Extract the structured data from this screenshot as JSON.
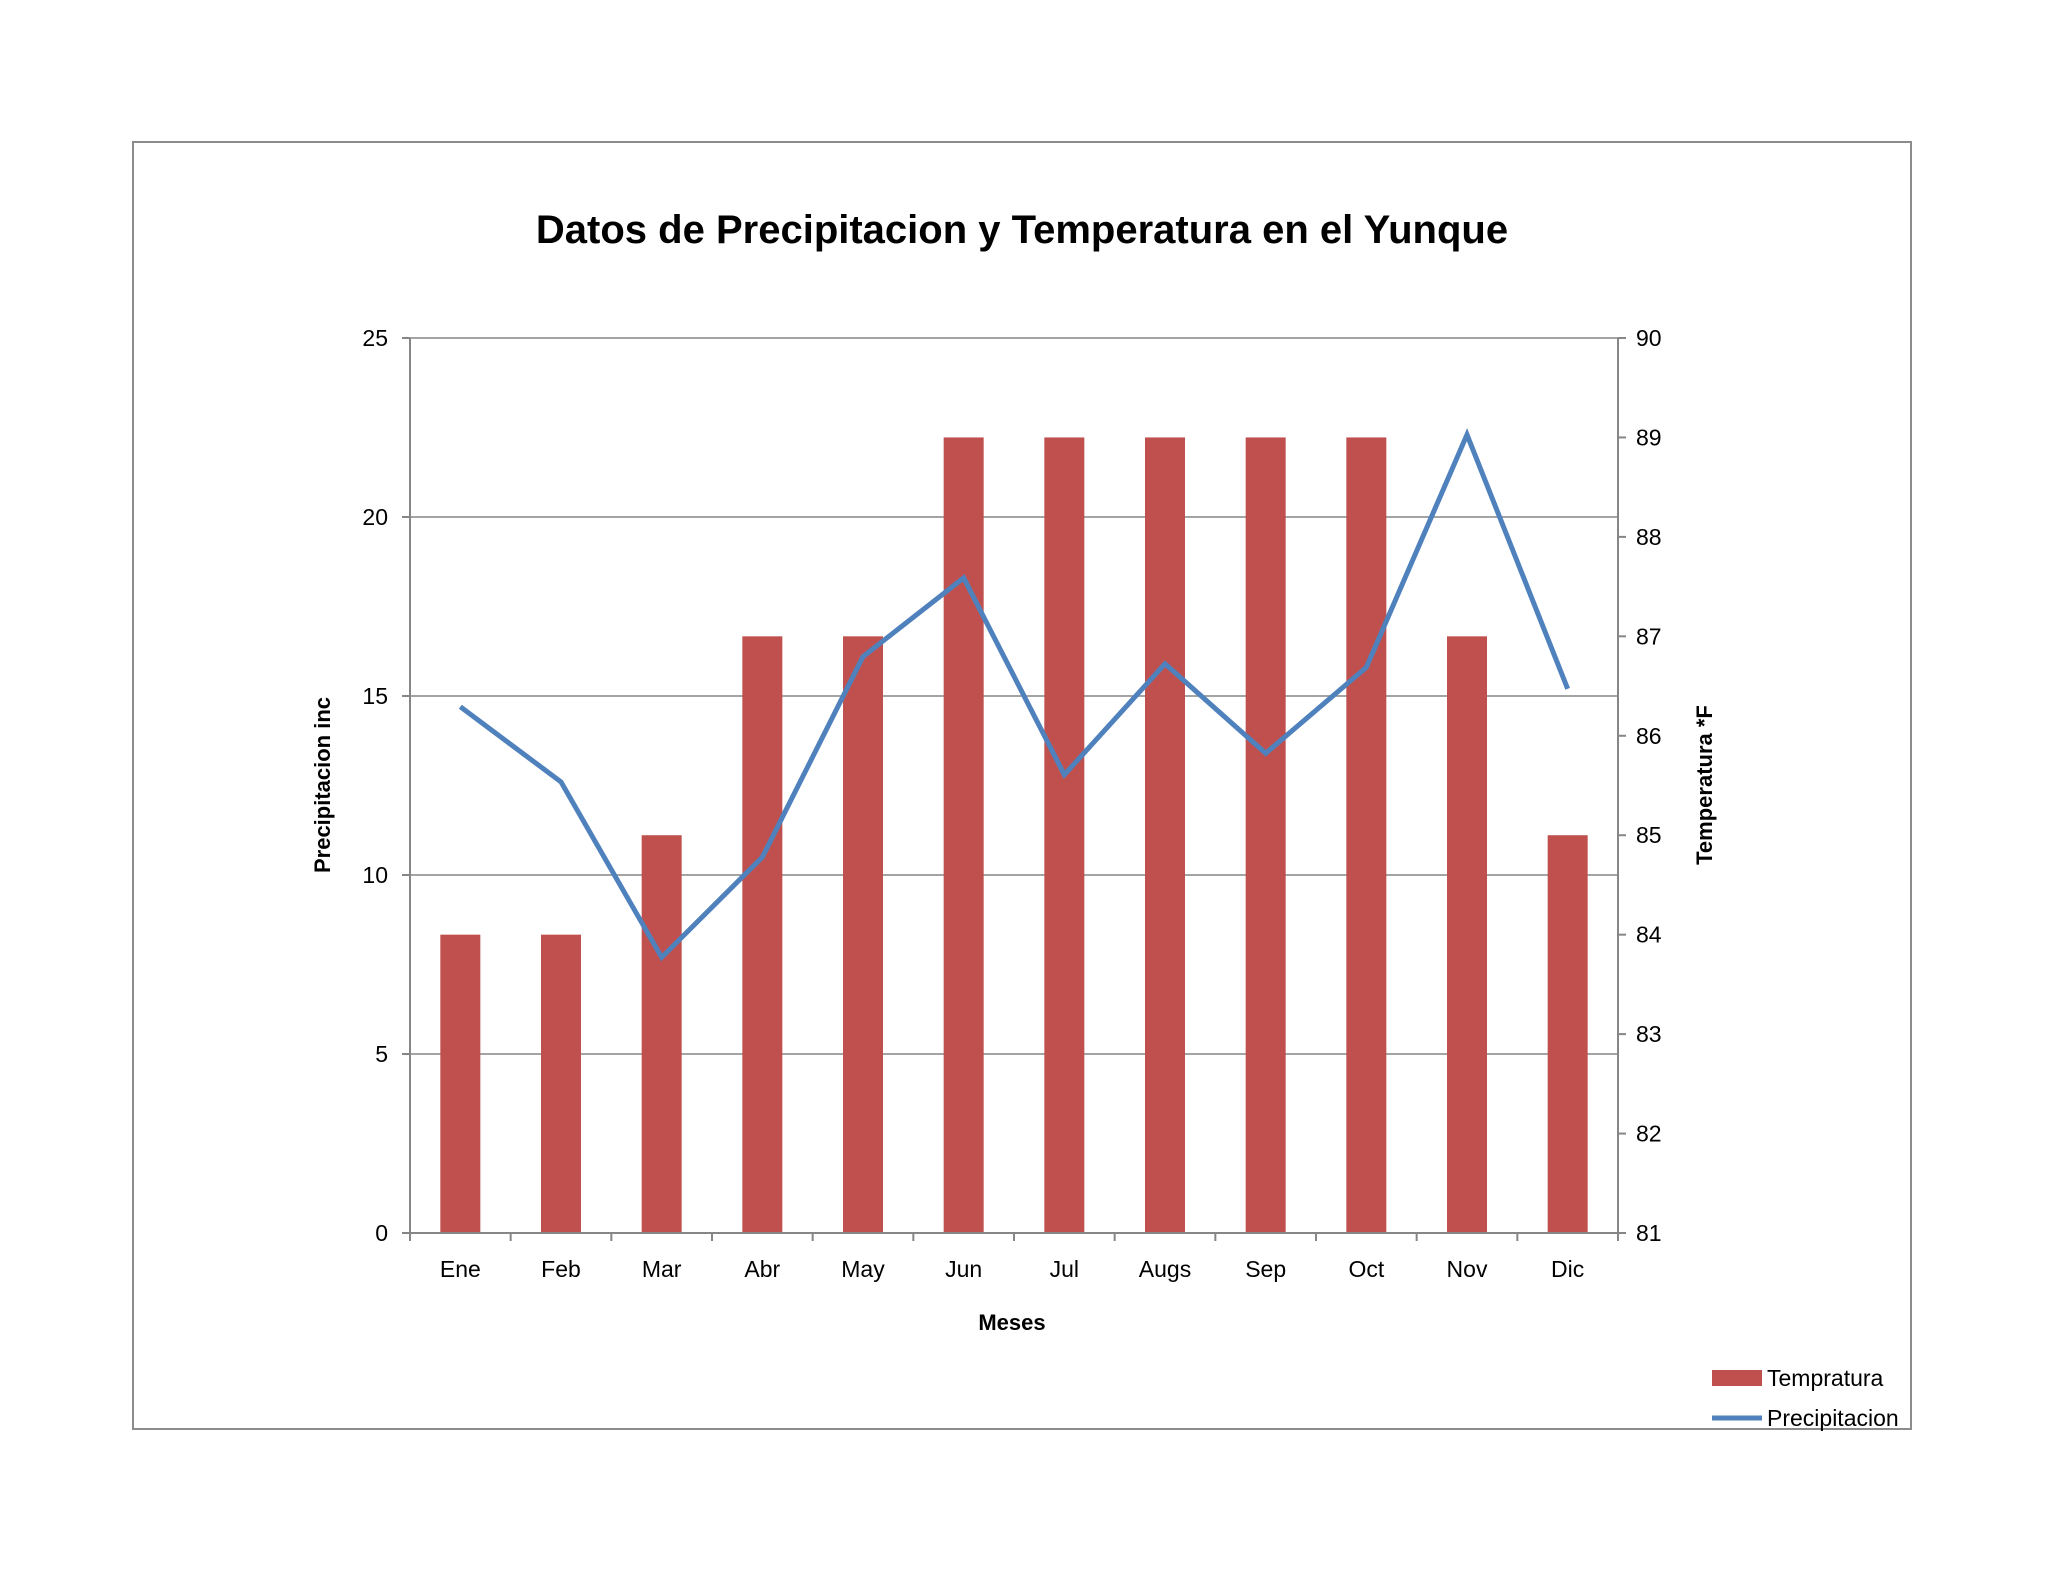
{
  "chart_data": {
    "type": "bar+line",
    "title": "Datos de Precipitacion y Temperatura en el Yunque",
    "xlabel": "Meses",
    "ylabel_left": "Precipitacion inc",
    "ylabel_right": "Temperatura *F",
    "categories": [
      "Ene",
      "Feb",
      "Mar",
      "Abr",
      "May",
      "Jun",
      "Jul",
      "Augs",
      "Sep",
      "Oct",
      "Nov",
      "Dic"
    ],
    "y_left": {
      "min": 0,
      "max": 25,
      "ticks": [
        0,
        5,
        10,
        15,
        20,
        25
      ]
    },
    "y_right": {
      "min": 81,
      "max": 90,
      "ticks": [
        81,
        82,
        83,
        84,
        85,
        86,
        87,
        88,
        89,
        90
      ]
    },
    "grid": true,
    "legend_position": "bottom-right",
    "series": [
      {
        "name": "Tempratura",
        "type": "bar",
        "axis": "right",
        "color": "#c0504d",
        "values": [
          84,
          84,
          85,
          87,
          87,
          89,
          89,
          89,
          89,
          89,
          87,
          85
        ]
      },
      {
        "name": "Precipitacion",
        "type": "line",
        "axis": "left",
        "color": "#4f81bd",
        "values": [
          14.7,
          12.6,
          7.7,
          10.5,
          16.1,
          18.3,
          12.8,
          15.9,
          13.4,
          15.8,
          22.3,
          15.2
        ]
      }
    ]
  }
}
